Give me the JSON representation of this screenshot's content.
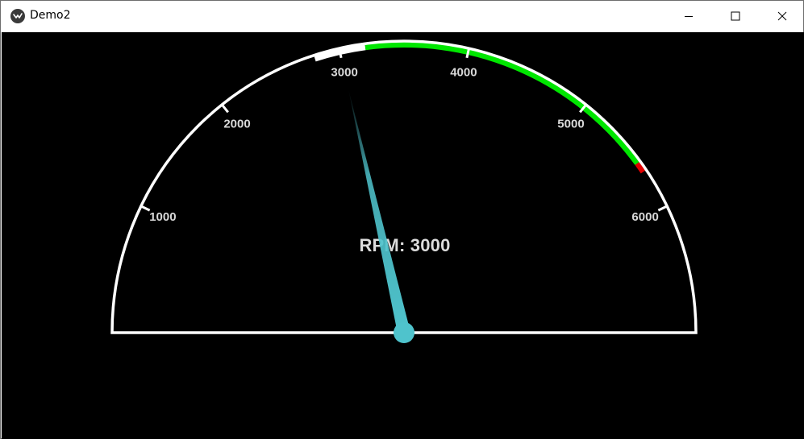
{
  "window": {
    "title": "Demo2",
    "app_icon": "kivy-icon",
    "controls": {
      "minimize": "minimize-icon",
      "maximize": "maximize-icon",
      "close": "close-icon"
    }
  },
  "gauge": {
    "min": 0,
    "max": 7000,
    "value": 3000,
    "readout_label": "RPM: 3000",
    "ticks": [
      {
        "value": 1000,
        "label": "1000"
      },
      {
        "value": 2000,
        "label": "2000"
      },
      {
        "value": 3000,
        "label": "3000"
      },
      {
        "value": 4000,
        "label": "4000"
      },
      {
        "value": 5000,
        "label": "5000"
      },
      {
        "value": 6000,
        "label": "6000"
      }
    ],
    "ranges": [
      {
        "from": 2800,
        "to": 3200,
        "color": "#ffffff"
      },
      {
        "from": 3200,
        "to": 5600,
        "color": "#00e600"
      },
      {
        "from": 5600,
        "to": 5680,
        "color": "#e00000"
      }
    ],
    "colors": {
      "background": "#000000",
      "outline": "#ffffff",
      "needle": "#4fc3cc",
      "labels": "#d9d9d9"
    }
  }
}
